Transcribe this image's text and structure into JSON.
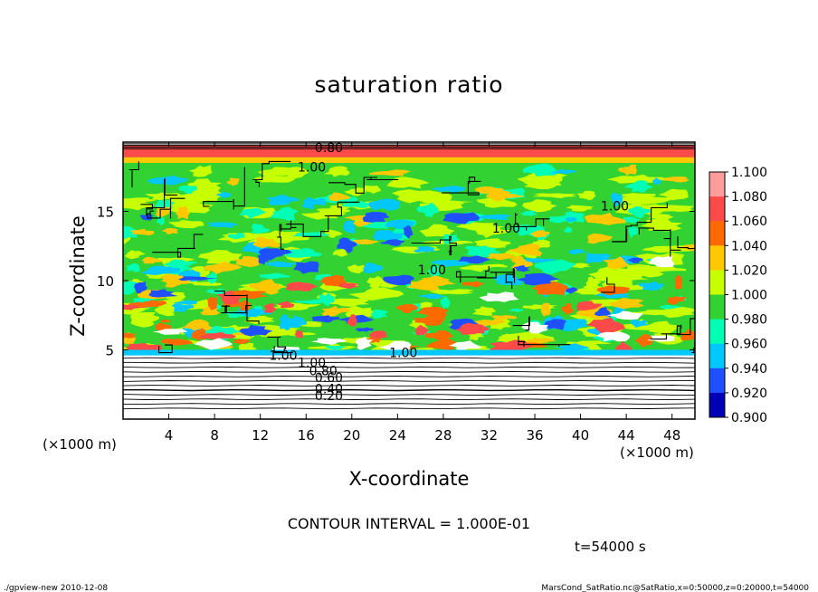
{
  "chart_data": {
    "type": "heatmap",
    "title": "saturation ratio",
    "xlabel": "X-coordinate",
    "ylabel": "Z-coordinate",
    "x_unit": "(×1000 m)",
    "y_unit": "(×1000 m)",
    "xlim": [
      0,
      50
    ],
    "ylim": [
      0,
      20
    ],
    "x_ticks": [
      4,
      8,
      12,
      16,
      20,
      24,
      28,
      32,
      36,
      40,
      44,
      48
    ],
    "y_ticks": [
      5,
      10,
      15
    ],
    "colorbar": {
      "levels": [
        "1.100",
        "1.080",
        "1.060",
        "1.040",
        "1.020",
        "1.000",
        "0.980",
        "0.960",
        "0.940",
        "0.920",
        "0.900"
      ],
      "colors": [
        "#ff9c9c",
        "#ff4a4a",
        "#ff6a00",
        "#ffc800",
        "#c8ff00",
        "#32d232",
        "#00ffb4",
        "#00c8ff",
        "#1e50ff",
        "#0000b4",
        "#6a00b4"
      ]
    },
    "contour_labels": [
      "0.80",
      "1.00",
      "1.00",
      "1.00",
      "1.00",
      "1.00",
      "1.00",
      "1.00",
      "0.80",
      "0.60",
      "0.40",
      "0.20"
    ],
    "contour_interval_text": "CONTOUR INTERVAL = 1.000E-01",
    "time_text": "t=54000 s"
  },
  "footer": {
    "left": "./gpview-new  2010-12-08",
    "right": "MarsCond_SatRatio.nc@SatRatio,x=0:50000,z=0:20000,t=54000"
  }
}
